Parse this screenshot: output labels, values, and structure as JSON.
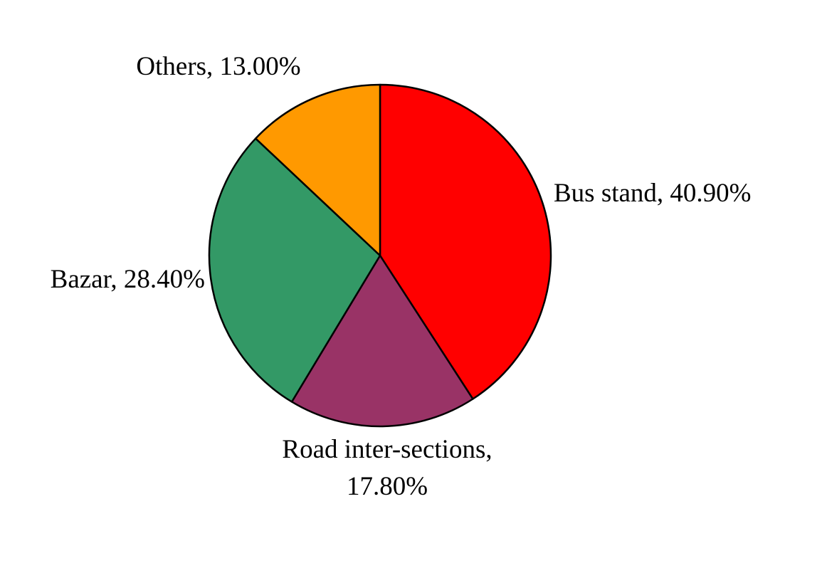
{
  "chart_data": {
    "type": "pie",
    "categories": [
      "Bus stand",
      "Road inter-sections",
      "Bazar",
      "Others"
    ],
    "values": [
      40.9,
      17.8,
      28.4,
      13.0
    ],
    "unit": "%",
    "start_angle": "12 o'clock, clockwise",
    "colors": [
      "#ff0000",
      "#993366",
      "#339966",
      "#ff9900"
    ],
    "labels": [
      {
        "lines": [
          "Bus stand, 40.90%"
        ]
      },
      {
        "lines": [
          "Road inter-sections,",
          "17.80%"
        ]
      },
      {
        "lines": [
          "Bazar, 28.40%"
        ]
      },
      {
        "lines": [
          "Others, 13.00%"
        ]
      }
    ]
  }
}
